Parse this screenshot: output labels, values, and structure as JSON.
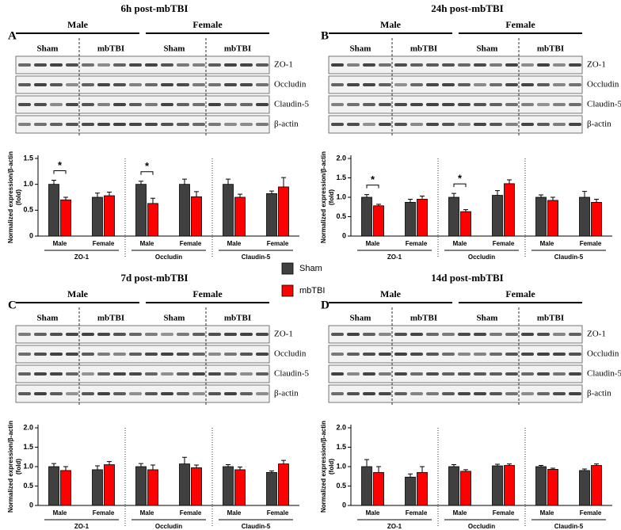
{
  "chart_data": [
    {
      "type": "bar",
      "panel": "A",
      "title": "6h post-mbTBI",
      "blot": {
        "sexes": [
          "Male",
          "Female"
        ],
        "conditions": [
          "Sham",
          "mbTBI",
          "Sham",
          "mbTBI"
        ],
        "proteins": [
          "ZO-1",
          "Occludin",
          "Claudin-5",
          "β-actin"
        ]
      },
      "y_label": [
        "Normalized expression/β-actin",
        "(fold)"
      ],
      "groups": [
        "ZO-1",
        "Occludin",
        "Claudin-5"
      ],
      "categories": [
        "Male",
        "Female",
        "Male",
        "Female",
        "Male",
        "Female"
      ],
      "series": [
        {
          "name": "Sham",
          "color": "#404040",
          "values": [
            1.0,
            0.75,
            1.0,
            1.0,
            1.0,
            0.82
          ],
          "errors": [
            0.08,
            0.08,
            0.06,
            0.1,
            0.1,
            0.05
          ]
        },
        {
          "name": "mbTBI",
          "color": "#ff0000",
          "values": [
            0.7,
            0.78,
            0.63,
            0.76,
            0.75,
            0.95
          ],
          "errors": [
            0.05,
            0.07,
            0.1,
            0.1,
            0.06,
            0.18
          ]
        }
      ],
      "significance": [
        {
          "category": 0,
          "label": "*"
        },
        {
          "category": 2,
          "label": "*"
        }
      ],
      "ylim": [
        0,
        1.5
      ],
      "yticks": [
        0,
        0.5,
        {
          "value": 1,
          "label": "1.0"
        },
        1.5
      ]
    },
    {
      "type": "bar",
      "panel": "B",
      "title": "24h post-mbTBI",
      "blot": {
        "sexes": [
          "Male",
          "Female"
        ],
        "conditions": [
          "Sham",
          "mbTBI",
          "Sham",
          "mbTBI"
        ],
        "proteins": [
          "ZO-1",
          "Occludin",
          "Claudin-5",
          "β-actin"
        ]
      },
      "y_label": [
        "Normalized expression/β-actin",
        "(fold)"
      ],
      "groups": [
        "ZO-1",
        "Occludin",
        "Claudin-5"
      ],
      "categories": [
        "Male",
        "Female",
        "Male",
        "Female",
        "Male",
        "Female"
      ],
      "series": [
        {
          "name": "Sham",
          "color": "#404040",
          "values": [
            1.0,
            0.87,
            1.0,
            1.05,
            1.0,
            1.0
          ],
          "errors": [
            0.07,
            0.08,
            0.1,
            0.12,
            0.06,
            0.15
          ]
        },
        {
          "name": "mbTBI",
          "color": "#ff0000",
          "values": [
            0.78,
            0.95,
            0.63,
            1.35,
            0.92,
            0.87
          ],
          "errors": [
            0.04,
            0.08,
            0.05,
            0.1,
            0.08,
            0.08
          ]
        }
      ],
      "significance": [
        {
          "category": 0,
          "label": "*"
        },
        {
          "category": 2,
          "label": "*"
        }
      ],
      "ylim": [
        0,
        2
      ],
      "yticks": [
        0,
        0.5,
        {
          "value": 1,
          "label": "1.0"
        },
        1.5,
        {
          "value": 2,
          "label": "2.0"
        }
      ]
    },
    {
      "type": "bar",
      "panel": "C",
      "title": "7d post-mbTBI",
      "blot": {
        "sexes": [
          "Male",
          "Female"
        ],
        "conditions": [
          "Sham",
          "mbTBI",
          "Sham",
          "mbTBI"
        ],
        "proteins": [
          "ZO-1",
          "Occludin",
          "Claudin-5",
          "β-actin"
        ]
      },
      "y_label": [
        "Normalized expression/β-actin",
        "(fold)"
      ],
      "groups": [
        "ZO-1",
        "Occludin",
        "Claudin-5"
      ],
      "categories": [
        "Male",
        "Female",
        "Male",
        "Female",
        "Male",
        "Female"
      ],
      "series": [
        {
          "name": "Sham",
          "color": "#404040",
          "values": [
            1.0,
            0.92,
            1.0,
            1.07,
            1.0,
            0.85
          ],
          "errors": [
            0.08,
            0.1,
            0.08,
            0.17,
            0.05,
            0.04
          ]
        },
        {
          "name": "mbTBI",
          "color": "#ff0000",
          "values": [
            0.9,
            1.05,
            0.92,
            0.97,
            0.92,
            1.07
          ],
          "errors": [
            0.1,
            0.08,
            0.12,
            0.07,
            0.07,
            0.09
          ]
        }
      ],
      "ylim": [
        0,
        2
      ],
      "yticks": [
        0,
        0.5,
        {
          "value": 1,
          "label": "1.0"
        },
        1.5,
        {
          "value": 2,
          "label": "2.0"
        }
      ]
    },
    {
      "type": "bar",
      "panel": "D",
      "title": "14d post-mbTBI",
      "blot": {
        "sexes": [
          "Male",
          "Female"
        ],
        "conditions": [
          "Sham",
          "mbTBI",
          "Sham",
          "mbTBI"
        ],
        "proteins": [
          "ZO-1",
          "Occludin",
          "Claudin-5",
          "β-actin"
        ]
      },
      "y_label": [
        "Normalized expression/β-actin",
        "(fold)"
      ],
      "groups": [
        "ZO-1",
        "Occludin",
        "Claudin-5"
      ],
      "categories": [
        "Male",
        "Female",
        "Male",
        "Female",
        "Male",
        "Female"
      ],
      "series": [
        {
          "name": "Sham",
          "color": "#404040",
          "values": [
            1.0,
            0.73,
            1.0,
            1.02,
            1.0,
            0.9
          ],
          "errors": [
            0.18,
            0.08,
            0.05,
            0.04,
            0.03,
            0.04
          ]
        },
        {
          "name": "mbTBI",
          "color": "#ff0000",
          "values": [
            0.85,
            0.85,
            0.88,
            1.03,
            0.93,
            1.03
          ],
          "errors": [
            0.15,
            0.15,
            0.04,
            0.04,
            0.03,
            0.04
          ]
        }
      ],
      "ylim": [
        0,
        2
      ],
      "yticks": [
        0,
        0.5,
        {
          "value": 1,
          "label": "1.0"
        },
        1.5,
        {
          "value": 2,
          "label": "2.0"
        }
      ]
    }
  ]
}
